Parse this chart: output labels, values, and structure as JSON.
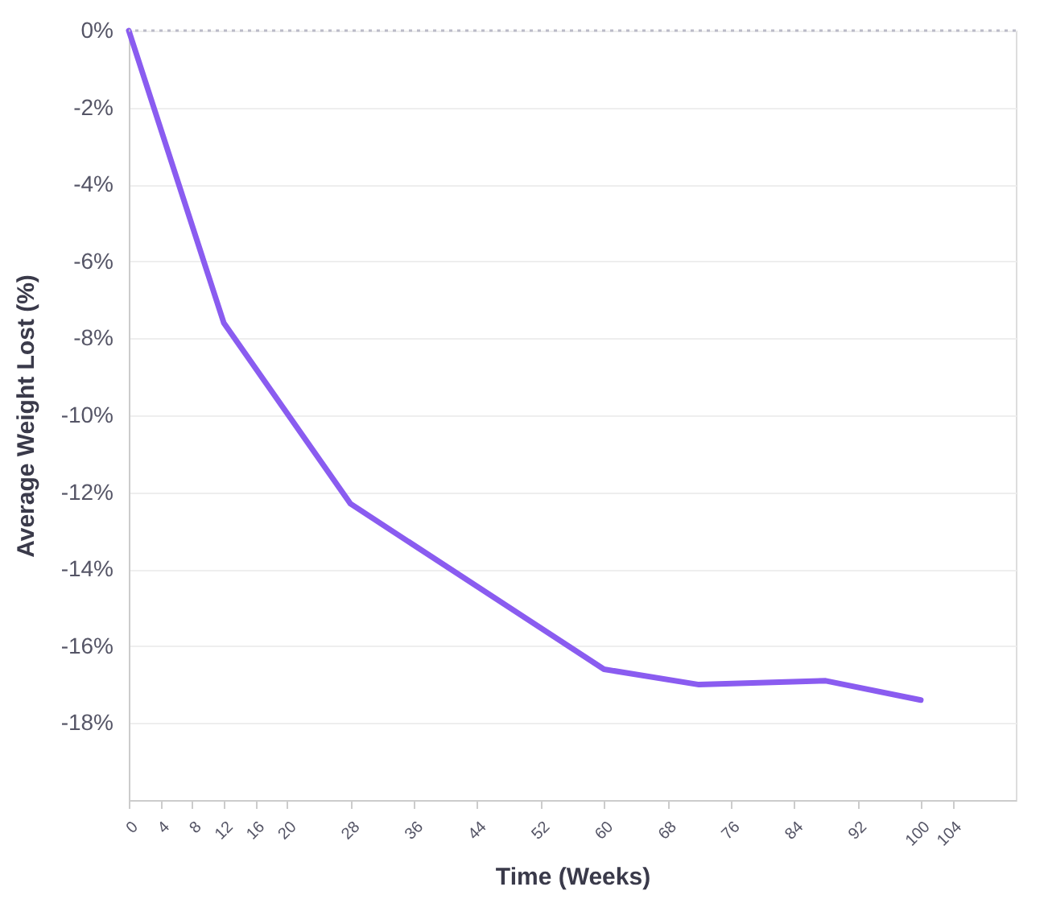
{
  "chart_data": {
    "type": "line",
    "xlabel": "Time (Weeks)",
    "ylabel": "Average Weight Lost (%)",
    "x": [
      0,
      12,
      28,
      60,
      72,
      88,
      100
    ],
    "series": [
      {
        "color": "#8a5cf0",
        "values": [
          0,
          -7.6,
          -12.3,
          -16.6,
          -17.0,
          -16.9,
          -17.4
        ]
      }
    ],
    "xlim": [
      0,
      112
    ],
    "xticks": [
      0,
      4,
      8,
      12,
      16,
      20,
      28,
      36,
      44,
      52,
      60,
      68,
      76,
      84,
      92,
      100,
      104
    ],
    "ylim": [
      -20,
      0
    ],
    "yticks": [
      {
        "value": 0,
        "label": "0%"
      },
      {
        "value": -2,
        "label": "-2%"
      },
      {
        "value": -4,
        "label": "-4%"
      },
      {
        "value": -6,
        "label": "-6%"
      },
      {
        "value": -8,
        "label": "-8%"
      },
      {
        "value": -10,
        "label": "-10%"
      },
      {
        "value": -12,
        "label": "-12%"
      },
      {
        "value": -14,
        "label": "-14%"
      },
      {
        "value": -16,
        "label": "-16%"
      },
      {
        "value": -18,
        "label": "-18%"
      }
    ],
    "ref_lines": [
      {
        "axis": "y",
        "value": 0,
        "color": "#bbbbc8",
        "line_style": "dotted"
      }
    ],
    "grid": "y",
    "marker": "none",
    "line_style": "solid"
  }
}
